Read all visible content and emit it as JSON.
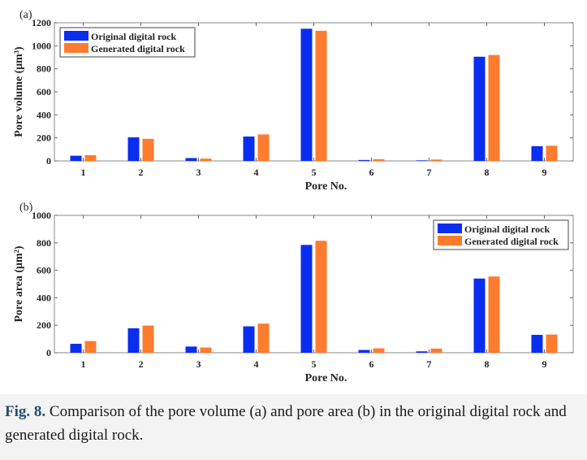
{
  "caption": {
    "label": "Fig. 8.",
    "text": " Comparison of the pore volume (a) and pore area (b) in the original digital rock and generated digital rock."
  },
  "colors": {
    "original": "#0a2ef0",
    "generated": "#ff7b2e"
  },
  "chart_data": [
    {
      "type": "bar",
      "panel_label": "(a)",
      "xlabel": "Pore No.",
      "ylabel": "Pore volume (μm³)",
      "ylim": [
        0,
        1200
      ],
      "yticks": [
        0,
        200,
        400,
        600,
        800,
        1000,
        1200
      ],
      "categories": [
        "1",
        "2",
        "3",
        "4",
        "5",
        "6",
        "7",
        "8",
        "9"
      ],
      "legend_position": "top-left",
      "series": [
        {
          "name": "Original digital rock",
          "values": [
            45,
            205,
            25,
            212,
            1148,
            8,
            5,
            905,
            128
          ]
        },
        {
          "name": "Generated digital rock",
          "values": [
            50,
            192,
            20,
            230,
            1130,
            15,
            12,
            920,
            132
          ]
        }
      ]
    },
    {
      "type": "bar",
      "panel_label": "(b)",
      "xlabel": "Pore No.",
      "ylabel": "Pore area (μm²)",
      "ylim": [
        0,
        1000
      ],
      "yticks": [
        0,
        200,
        400,
        600,
        800,
        1000
      ],
      "categories": [
        "1",
        "2",
        "3",
        "4",
        "5",
        "6",
        "7",
        "8",
        "9"
      ],
      "legend_position": "top-right",
      "series": [
        {
          "name": "Original digital rock",
          "values": [
            65,
            178,
            45,
            192,
            785,
            20,
            10,
            540,
            130
          ]
        },
        {
          "name": "Generated digital rock",
          "values": [
            85,
            198,
            38,
            212,
            815,
            32,
            30,
            555,
            132
          ]
        }
      ]
    }
  ]
}
